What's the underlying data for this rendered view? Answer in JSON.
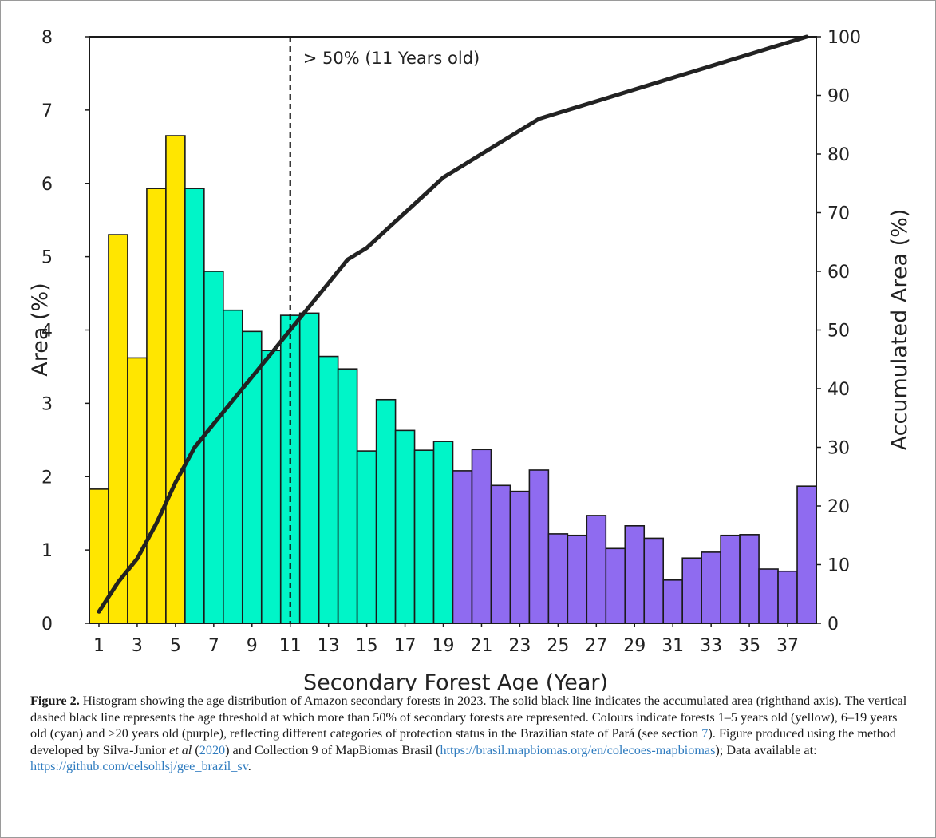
{
  "chart_data": {
    "type": "bar",
    "xlabel": "Secondary Forest Age (Year)",
    "ylabel": "Area (%)",
    "y2label": "Accumulated Area (%)",
    "ylim": [
      0,
      8
    ],
    "y2lim": [
      0,
      100
    ],
    "yticks": [
      "0",
      "1",
      "2",
      "3",
      "4",
      "5",
      "6",
      "7",
      "8"
    ],
    "y2ticks": [
      "0",
      "10",
      "20",
      "30",
      "40",
      "50",
      "60",
      "70",
      "80",
      "90",
      "100"
    ],
    "xticks": [
      "1",
      "3",
      "5",
      "7",
      "9",
      "11",
      "13",
      "15",
      "17",
      "19",
      "21",
      "23",
      "25",
      "27",
      "29",
      "31",
      "33",
      "35",
      "37"
    ],
    "categories": [
      1,
      2,
      3,
      4,
      5,
      6,
      7,
      8,
      9,
      10,
      11,
      12,
      13,
      14,
      15,
      16,
      17,
      18,
      19,
      20,
      21,
      22,
      23,
      24,
      25,
      26,
      27,
      28,
      29,
      30,
      31,
      32,
      33,
      34,
      35,
      36,
      37,
      38
    ],
    "values": [
      1.83,
      5.3,
      3.62,
      5.93,
      6.65,
      5.93,
      4.8,
      4.27,
      3.98,
      3.72,
      4.2,
      4.23,
      3.64,
      3.47,
      2.35,
      3.05,
      2.63,
      2.36,
      2.48,
      2.08,
      2.37,
      1.88,
      1.8,
      2.09,
      1.22,
      1.2,
      1.47,
      1.02,
      1.33,
      1.16,
      0.59,
      0.89,
      0.97,
      1.2,
      1.21,
      0.74,
      0.71,
      1.87
    ],
    "bar_colors": [
      "#ffe600",
      "#ffe600",
      "#ffe600",
      "#ffe600",
      "#ffe600",
      "#00f5c8",
      "#00f5c8",
      "#00f5c8",
      "#00f5c8",
      "#00f5c8",
      "#00f5c8",
      "#00f5c8",
      "#00f5c8",
      "#00f5c8",
      "#00f5c8",
      "#00f5c8",
      "#00f5c8",
      "#00f5c8",
      "#00f5c8",
      "#8f6bf0",
      "#8f6bf0",
      "#8f6bf0",
      "#8f6bf0",
      "#8f6bf0",
      "#8f6bf0",
      "#8f6bf0",
      "#8f6bf0",
      "#8f6bf0",
      "#8f6bf0",
      "#8f6bf0",
      "#8f6bf0",
      "#8f6bf0",
      "#8f6bf0",
      "#8f6bf0",
      "#8f6bf0",
      "#8f6bf0",
      "#8f6bf0",
      "#8f6bf0"
    ],
    "accumulated": {
      "x": [
        1,
        2,
        3,
        4,
        5,
        6,
        7,
        8,
        9,
        10,
        11,
        12,
        13,
        14,
        15,
        16,
        17,
        18,
        19,
        20,
        21,
        22,
        23,
        24,
        25,
        26,
        27,
        28,
        29,
        30,
        31,
        32,
        33,
        34,
        35,
        36,
        37,
        38
      ],
      "y": [
        2,
        7,
        11,
        17,
        24,
        30,
        34,
        38,
        42,
        46,
        50,
        54,
        58,
        62,
        64,
        67,
        70,
        73,
        76,
        78,
        80,
        82,
        84,
        86,
        87,
        88,
        89,
        90,
        91,
        92,
        93,
        94,
        95,
        96,
        97,
        98,
        99,
        100
      ],
      "color": "#222222"
    },
    "threshold": {
      "x": 11,
      "label": "> 50% (11 Years old)"
    }
  },
  "caption": {
    "label": "Figure 2.",
    "text_1": " Histogram showing the age distribution of Amazon secondary forests in 2023. The solid black line indicates the accumulated area (righthand axis). The vertical dashed black line represents the age threshold at which more than 50% of secondary forests are represented. Colours indicate forests 1–5 years old (yellow), 6–19 years old (cyan) and >20 years old (purple), reflecting different categories of protection status in the Brazilian state of Pará (see section ",
    "section_ref": "7",
    "text_2": "). Figure produced using the method developed by Silva-Junior ",
    "etal": "et al",
    "text_3": " (",
    "year_ref": "2020",
    "text_4": ") and Collection 9 of MapBiomas Brasil (",
    "url_1": "https://brasil.mapbiomas.org/en/colecoes-mapbiomas",
    "text_5": "); Data available at: ",
    "url_2": "https://github.com/celsohlsj/gee_brazil_sv",
    "text_6": "."
  }
}
